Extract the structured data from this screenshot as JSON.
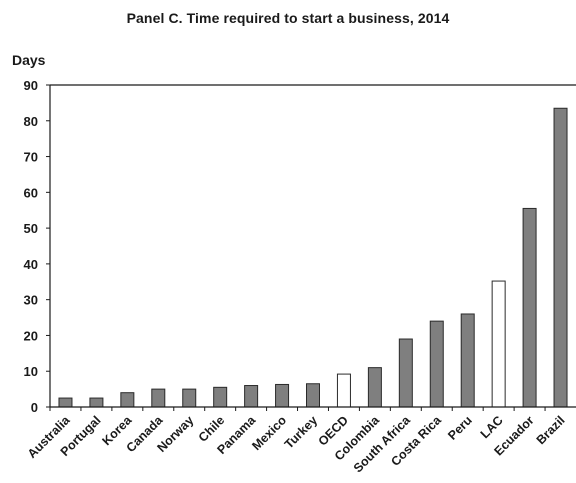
{
  "chart_data": {
    "type": "bar",
    "title": "Panel C. Time required to start a business, 2014",
    "ylabel": "Days",
    "xlabel": "",
    "ylim": [
      0,
      90
    ],
    "yticks": [
      0,
      10,
      20,
      30,
      40,
      50,
      60,
      70,
      80,
      90
    ],
    "grid": false,
    "categories": [
      "Australia",
      "Portugal",
      "Korea",
      "Canada",
      "Norway",
      "Chile",
      "Panama",
      "Mexico",
      "Turkey",
      "OECD",
      "Colombia",
      "South Africa",
      "Costa Rica",
      "Peru",
      "LAC",
      "Ecuador",
      "Brazil"
    ],
    "values": [
      2.5,
      2.5,
      4,
      5,
      5,
      5.5,
      6,
      6.3,
      6.5,
      9.2,
      11,
      19,
      24,
      26,
      35.2,
      55.5,
      83.5
    ],
    "highlighted": [
      "OECD",
      "LAC"
    ],
    "colors": {
      "bar": "#7f7f7f",
      "bar_highlight": "#ffffff",
      "bar_stroke": "#2a2a2a",
      "axis": "#1a1a1a"
    }
  }
}
